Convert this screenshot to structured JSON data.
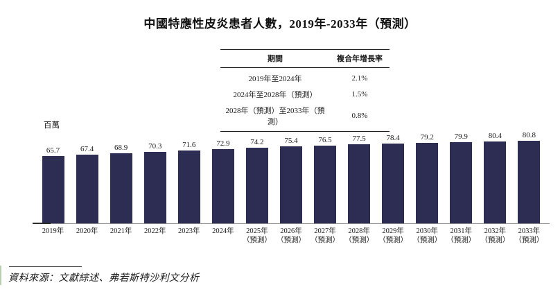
{
  "title": "中國特應性皮炎患者人數，2019年-2033年（預測）",
  "cagr_table": {
    "headers": [
      "期間",
      "複合年增長率"
    ],
    "rows": [
      {
        "period": "2019年至2024年",
        "cagr": "2.1%"
      },
      {
        "period": "2024年至2028年（預測）",
        "cagr": "1.5%"
      },
      {
        "period": "2028年（預測）至2033年（預測）",
        "cagr": "0.8%"
      }
    ]
  },
  "chart_data": {
    "type": "bar",
    "title": "中國特應性皮炎患者人數，2019年-2033年（預測）",
    "unit_label": "百萬",
    "ylabel": "百萬",
    "xlabel": "",
    "baseline": 0,
    "grid": false,
    "legend": false,
    "bar_color": "#2d2c52",
    "categories": [
      {
        "year": "2019年",
        "note": ""
      },
      {
        "year": "2020年",
        "note": ""
      },
      {
        "year": "2021年",
        "note": ""
      },
      {
        "year": "2022年",
        "note": ""
      },
      {
        "year": "2023年",
        "note": ""
      },
      {
        "year": "2024年",
        "note": ""
      },
      {
        "year": "2025年",
        "note": "（預測）"
      },
      {
        "year": "2026年",
        "note": "（預測）"
      },
      {
        "year": "2027年",
        "note": "（預測）"
      },
      {
        "year": "2028年",
        "note": "（預測）"
      },
      {
        "year": "2029年",
        "note": "（預測）"
      },
      {
        "year": "2030年",
        "note": "（預測）"
      },
      {
        "year": "2031年",
        "note": "（預測）"
      },
      {
        "year": "2032年",
        "note": "（預測）"
      },
      {
        "year": "2033年",
        "note": "（預測）"
      }
    ],
    "values": [
      65.7,
      67.4,
      68.9,
      70.3,
      71.6,
      72.9,
      74.2,
      75.4,
      76.5,
      77.5,
      78.4,
      79.2,
      79.9,
      80.4,
      80.8
    ]
  },
  "source": "資料來源：文獻綜述、弗若斯特沙利文分析"
}
